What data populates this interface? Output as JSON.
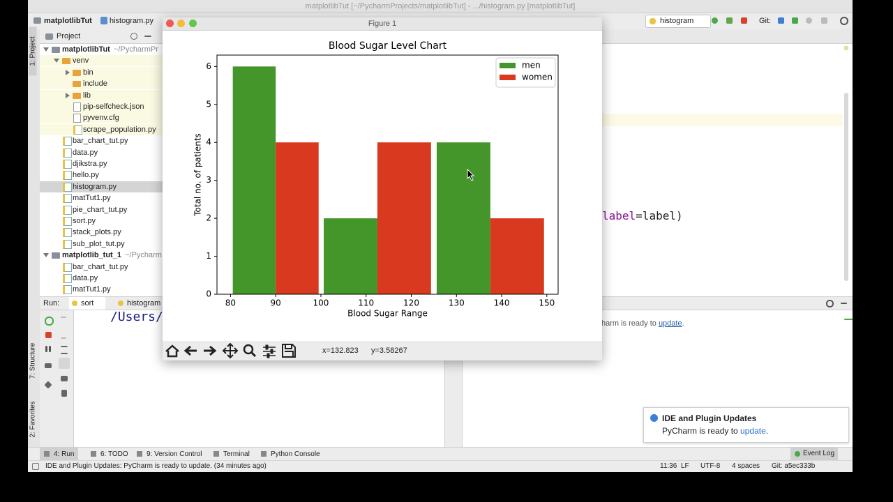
{
  "window_title": "matplotlibTut [~/PycharmProjects/matplotlibTut] - .../histogram.py [matplotlibTut]",
  "breadcrumb": [
    "matplotlibTut",
    "histogram.py"
  ],
  "run_config": "histogram",
  "git_label": "Git:",
  "side_tabs": [
    "1: Project",
    "7: Structure",
    "2: Favorites"
  ],
  "project_panel": {
    "title": "Project",
    "tree": [
      {
        "label": "matplotlibTut",
        "hint": "~/PycharmPr"
      },
      {
        "label": "venv"
      },
      {
        "label": "bin"
      },
      {
        "label": "include"
      },
      {
        "label": "lib"
      },
      {
        "label": "pip-selfcheck.json"
      },
      {
        "label": "pyvenv.cfg"
      },
      {
        "label": "scrape_population.py"
      },
      {
        "label": "bar_chart_tut.py"
      },
      {
        "label": "data.py"
      },
      {
        "label": "djikstra.py"
      },
      {
        "label": "hello.py"
      },
      {
        "label": "histogram.py"
      },
      {
        "label": "matTut1.py"
      },
      {
        "label": "pie_chart_tut.py"
      },
      {
        "label": "sort.py"
      },
      {
        "label": "stack_plots.py"
      },
      {
        "label": "sub_plot_tut.py"
      },
      {
        "label": "matplotlib_tut_1",
        "hint": "~/Pycharm"
      },
      {
        "label": "bar_chart_tut.py"
      },
      {
        "label": "data.py"
      },
      {
        "label": "matTut1.py"
      }
    ]
  },
  "editor_code": [
    "label",
    "=label)"
  ],
  "run_panel": {
    "label": "Run:",
    "tabs": [
      "sort",
      "histogram"
    ],
    "output": "/Users/gunes"
  },
  "event_message": {
    "text": "harm is ready to",
    "link": "update",
    "end": "."
  },
  "notification": {
    "title": "IDE and Plugin Updates",
    "text": "PyCharm is ready to",
    "link": "update",
    "end": "."
  },
  "bottom_tabs": [
    "4: Run",
    "6: TODO",
    "9: Version Control",
    "Terminal",
    "Python Console"
  ],
  "event_log": "Event Log",
  "status": {
    "message": "IDE and Plugin Updates: PyCharm is ready to update. (34 minutes ago)",
    "items": [
      "11:36",
      "LF",
      "UTF-8",
      "4 spaces",
      "Git: a5ec333b"
    ]
  },
  "figure": {
    "title": "Figure 1",
    "coords": [
      "x=132.823",
      "y=3.58267"
    ]
  },
  "chart_data": {
    "type": "histogram",
    "title": "Blood Sugar Level Chart",
    "x_label": "Blood Sugar Range",
    "y_label": "Total no. of patients",
    "bins": [
      80,
      100,
      125,
      150
    ],
    "series": [
      {
        "name": "men",
        "color": "#44962b",
        "values": [
          6,
          2,
          4
        ]
      },
      {
        "name": "women",
        "color": "#d9391f",
        "values": [
          4,
          4,
          2
        ]
      }
    ],
    "xlim": [
      77,
      152.5
    ],
    "ylim": [
      0,
      6.3
    ],
    "xticks": [
      80,
      90,
      100,
      110,
      120,
      130,
      140,
      150
    ],
    "yticks": [
      0,
      1,
      2,
      3,
      4,
      5,
      6
    ],
    "legend": "upper right"
  }
}
